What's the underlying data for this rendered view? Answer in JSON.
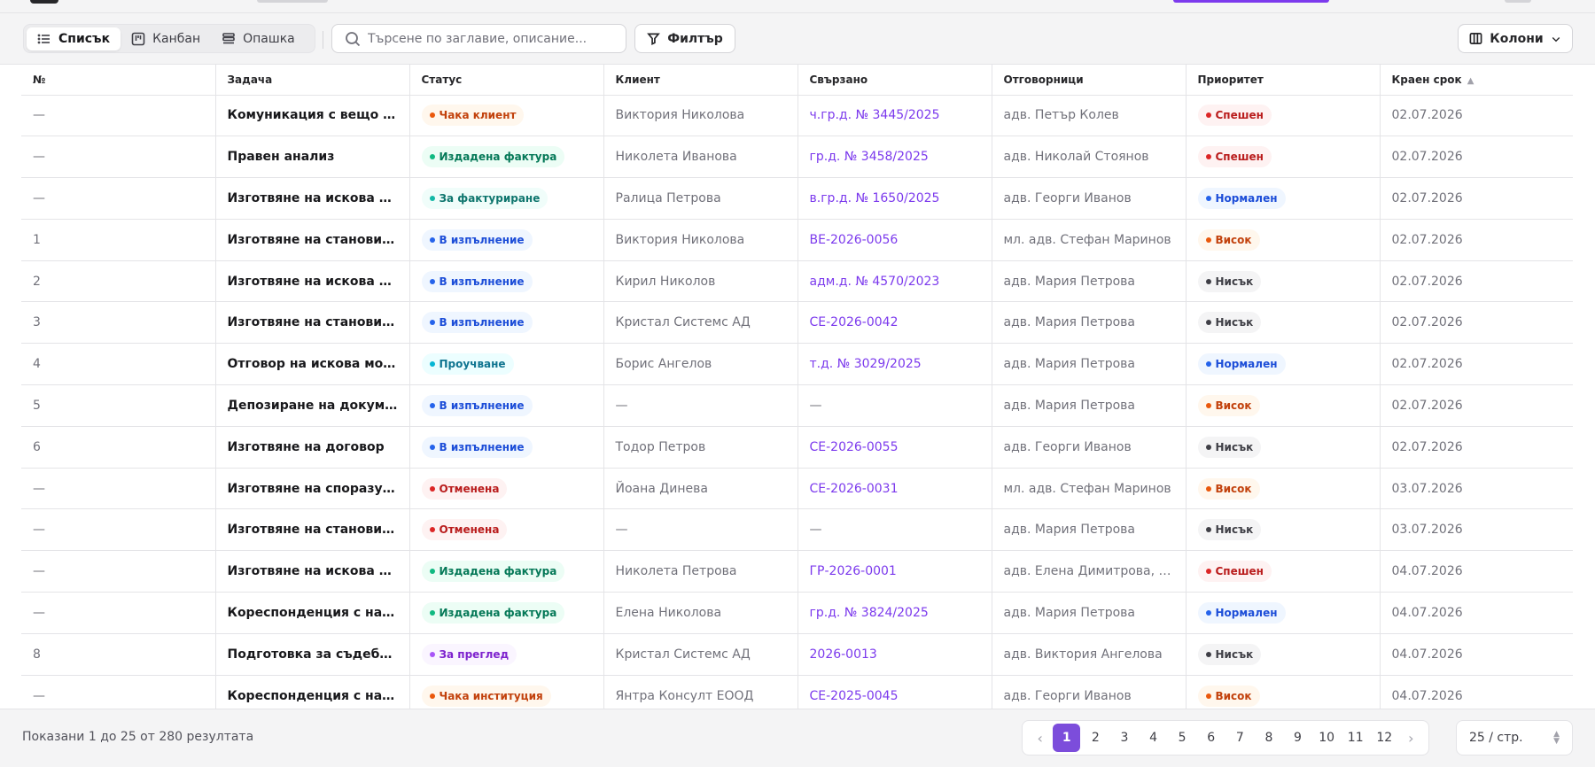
{
  "toolbar": {
    "views": [
      {
        "label": "Списък",
        "icon": "list-icon",
        "active": true
      },
      {
        "label": "Канбан",
        "icon": "kanban-icon",
        "active": false
      },
      {
        "label": "Опашка",
        "icon": "queue-icon",
        "active": false
      }
    ],
    "search_placeholder": "Търсене по заглавие, описание...",
    "filter_label": "Филтър",
    "columns_label": "Колони"
  },
  "table": {
    "headers": [
      "№",
      "Задача",
      "Статус",
      "Клиент",
      "Свързано",
      "Отговорници",
      "Приоритет",
      "Краен срок"
    ],
    "sorted_column": "Краен срок",
    "rows": [
      {
        "no": "—",
        "task": "Комуникация с вещо лице",
        "status": "Чака клиент",
        "client": "Виктория Николова",
        "linked": "ч.гр.д. № 3445/2025",
        "assignees": "адв. Петър Колев",
        "priority": "Спешен",
        "due": "02.07.2026"
      },
      {
        "no": "—",
        "task": "Правен анализ",
        "status": "Издадена фактура",
        "client": "Николета Иванова",
        "linked": "гр.д. № 3458/2025",
        "assignees": "адв. Николай Стоянов",
        "priority": "Спешен",
        "due": "02.07.2026"
      },
      {
        "no": "—",
        "task": "Изготвяне на искова мо...",
        "status": "За фактуриране",
        "client": "Ралица Петрова",
        "linked": "в.гр.д. № 1650/2025",
        "assignees": "адв. Георги Иванов",
        "priority": "Нормален",
        "due": "02.07.2026"
      },
      {
        "no": "1",
        "task": "Изготвяне на становище",
        "status": "В изпълнение",
        "client": "Виктория Николова",
        "linked": "ВЕ-2026-0056",
        "assignees": "мл. адв. Стефан Маринов",
        "priority": "Висок",
        "due": "02.07.2026"
      },
      {
        "no": "2",
        "task": "Изготвяне на искова мо...",
        "status": "В изпълнение",
        "client": "Кирил Николов",
        "linked": "адм.д. № 4570/2023",
        "assignees": "адв. Мария Петрова",
        "priority": "Нисък",
        "due": "02.07.2026"
      },
      {
        "no": "3",
        "task": "Изготвяне на становище",
        "status": "В изпълнение",
        "client": "Кристал Системс АД",
        "linked": "СЕ-2026-0042",
        "assignees": "адв. Мария Петрова",
        "priority": "Нисък",
        "due": "02.07.2026"
      },
      {
        "no": "4",
        "task": "Отговор на искова молба",
        "status": "Проучване",
        "client": "Борис Ангелов",
        "linked": "т.д. № 3029/2025",
        "assignees": "адв. Мария Петрова",
        "priority": "Нормален",
        "due": "02.07.2026"
      },
      {
        "no": "5",
        "task": "Депозиране на докумен...",
        "status": "В изпълнение",
        "client": "—",
        "linked": "—",
        "assignees": "адв. Мария Петрова",
        "priority": "Висок",
        "due": "02.07.2026"
      },
      {
        "no": "6",
        "task": "Изготвяне на договор",
        "status": "В изпълнение",
        "client": "Тодор Петров",
        "linked": "СЕ-2026-0055",
        "assignees": "адв. Георги Иванов",
        "priority": "Нисък",
        "due": "02.07.2026"
      },
      {
        "no": "—",
        "task": "Изготвяне на споразум...",
        "status": "Отменена",
        "client": "Йоана Динева",
        "linked": "СЕ-2026-0031",
        "assignees": "мл. адв. Стефан Маринов",
        "priority": "Висок",
        "due": "03.07.2026"
      },
      {
        "no": "—",
        "task": "Изготвяне на становище",
        "status": "Отменена",
        "client": "—",
        "linked": "—",
        "assignees": "адв. Мария Петрова",
        "priority": "Нисък",
        "due": "03.07.2026"
      },
      {
        "no": "—",
        "task": "Изготвяне на искова мо...",
        "status": "Издадена фактура",
        "client": "Николета Петрова",
        "linked": "ГР-2026-0001",
        "assignees": "адв. Елена Димитрова, а...",
        "priority": "Спешен",
        "due": "04.07.2026"
      },
      {
        "no": "—",
        "task": "Кореспонденция с наср...",
        "status": "Издадена фактура",
        "client": "Елена Николова",
        "linked": "гр.д. № 3824/2025",
        "assignees": "адв. Мария Петрова",
        "priority": "Нормален",
        "due": "04.07.2026"
      },
      {
        "no": "8",
        "task": "Подготовка за съдебно ...",
        "status": "За преглед",
        "client": "Кристал Системс АД",
        "linked": "2026-0013",
        "assignees": "адв. Виктория Ангелова",
        "priority": "Нисък",
        "due": "04.07.2026"
      },
      {
        "no": "—",
        "task": "Кореспонденция с наср...",
        "status": "Чака институция",
        "client": "Янтра Консулт ЕООД",
        "linked": "СЕ-2025-0045",
        "assignees": "адв. Георги Иванов",
        "priority": "Висок",
        "due": "04.07.2026"
      }
    ]
  },
  "status_colors": {
    "Чака клиент": {
      "bg": "#fff7ed",
      "fg": "#c2410c",
      "dot": "#ea580c"
    },
    "Издадена фактура": {
      "bg": "#ecfdf5",
      "fg": "#047857",
      "dot": "#10b981"
    },
    "За фактуриране": {
      "bg": "#f0fdfa",
      "fg": "#0f766e",
      "dot": "#14b8a6"
    },
    "В изпълнение": {
      "bg": "#eff6ff",
      "fg": "#1d4ed8",
      "dot": "#2563eb"
    },
    "Проучване": {
      "bg": "#ecfeff",
      "fg": "#0e7490",
      "dot": "#06b6d4"
    },
    "Отменена": {
      "bg": "#fef2f2",
      "fg": "#b91c1c",
      "dot": "#dc2626"
    },
    "За преглед": {
      "bg": "#faf5ff",
      "fg": "#7e22ce",
      "dot": "#a855f7"
    },
    "Чака институция": {
      "bg": "#fff7ed",
      "fg": "#c2410c",
      "dot": "#ea580c"
    }
  },
  "priority_colors": {
    "Спешен": {
      "bg": "#fef2f2",
      "fg": "#b91c1c",
      "dot": "#dc2626"
    },
    "Нормален": {
      "bg": "#eff6ff",
      "fg": "#1d4ed8",
      "dot": "#2563eb"
    },
    "Висок": {
      "bg": "#fff7ed",
      "fg": "#c2410c",
      "dot": "#ea580c"
    },
    "Нисък": {
      "bg": "#f4f4f5",
      "fg": "#3f3f46",
      "dot": "#3f3f46"
    }
  },
  "footer": {
    "results_text": "Показани 1 до 25 от 280 резултата",
    "pages": [
      "1",
      "2",
      "3",
      "4",
      "5",
      "6",
      "7",
      "8",
      "9",
      "10",
      "11",
      "12"
    ],
    "current_page": "1",
    "per_page_label": "25 / стр."
  },
  "accent_color": "#7c3aed"
}
